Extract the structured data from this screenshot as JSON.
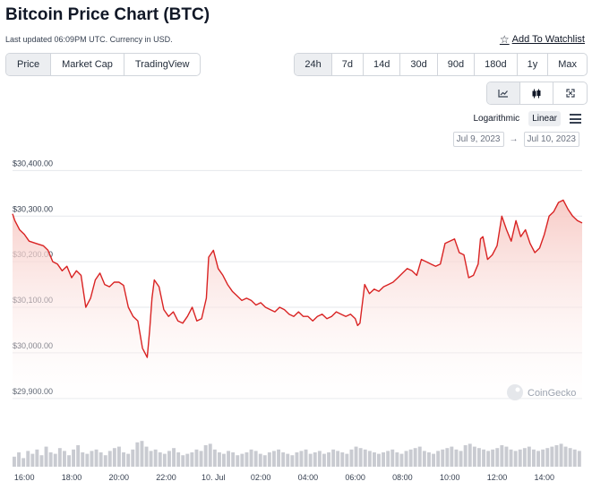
{
  "header": {
    "title": "Bitcoin Price Chart (BTC)",
    "meta": "Last updated 06:09PM UTC. Currency in USD.",
    "watchlist_label": "Add To Watchlist"
  },
  "view_tabs": [
    {
      "label": "Price",
      "active": true
    },
    {
      "label": "Market Cap",
      "active": false
    },
    {
      "label": "TradingView",
      "active": false
    }
  ],
  "range_tabs": [
    {
      "label": "24h",
      "active": true
    },
    {
      "label": "7d",
      "active": false
    },
    {
      "label": "14d",
      "active": false
    },
    {
      "label": "30d",
      "active": false
    },
    {
      "label": "90d",
      "active": false
    },
    {
      "label": "180d",
      "active": false
    },
    {
      "label": "1y",
      "active": false
    },
    {
      "label": "Max",
      "active": false
    }
  ],
  "chart_types": [
    {
      "icon": "line-chart-icon",
      "active": true
    },
    {
      "icon": "candlestick-icon",
      "active": false
    },
    {
      "icon": "fullscreen-icon",
      "active": false
    }
  ],
  "scale": {
    "log_label": "Logarithmic",
    "linear_label": "Linear",
    "active": "linear"
  },
  "date_range": {
    "from": "Jul 9, 2023",
    "separator": "→",
    "to": "Jul 10, 2023"
  },
  "watermark": "CoinGecko",
  "colors": {
    "line": "#d92323",
    "fill_top": "#f7c9c4",
    "volume": "#c9cbd1"
  },
  "chart_data": {
    "type": "line",
    "title": "",
    "y_ticks": [
      30400,
      30300,
      30200,
      30100,
      30000,
      29900
    ],
    "y_tick_labels": [
      "$30,400.00",
      "$30,300.00",
      "$30,200.00",
      "$30,100.00",
      "$30,000.00",
      "$29,900.00"
    ],
    "ylim": [
      29880,
      30440
    ],
    "xlim": [
      15.5,
      39.6
    ],
    "x_ticks": [
      16,
      18,
      20,
      22,
      24,
      26,
      28,
      30,
      32,
      34,
      36,
      38
    ],
    "x_tick_labels": [
      "16:00",
      "18:00",
      "20:00",
      "22:00",
      "10. Jul",
      "02:00",
      "04:00",
      "06:00",
      "08:00",
      "10:00",
      "12:00",
      "14:00"
    ],
    "x_unit": "hours since Jul 9 00:00",
    "series": [
      {
        "name": "Price",
        "x": [
          15.5,
          15.6,
          15.8,
          16.0,
          16.2,
          16.5,
          16.8,
          17.0,
          17.2,
          17.4,
          17.6,
          17.8,
          18.0,
          18.2,
          18.4,
          18.6,
          18.8,
          19.0,
          19.2,
          19.4,
          19.6,
          19.8,
          20.0,
          20.2,
          20.4,
          20.6,
          20.8,
          21.0,
          21.2,
          21.3,
          21.4,
          21.5,
          21.7,
          21.9,
          22.1,
          22.3,
          22.5,
          22.7,
          22.9,
          23.1,
          23.3,
          23.5,
          23.7,
          23.8,
          24.0,
          24.2,
          24.4,
          24.6,
          24.8,
          25.0,
          25.2,
          25.4,
          25.6,
          25.8,
          26.0,
          26.2,
          26.4,
          26.6,
          26.8,
          27.0,
          27.2,
          27.4,
          27.6,
          27.8,
          28.0,
          28.2,
          28.4,
          28.6,
          28.8,
          29.0,
          29.2,
          29.4,
          29.6,
          29.8,
          30.0,
          30.1,
          30.2,
          30.4,
          30.6,
          30.8,
          31.0,
          31.2,
          31.4,
          31.6,
          31.8,
          32.0,
          32.2,
          32.4,
          32.6,
          32.8,
          33.0,
          33.2,
          33.4,
          33.6,
          33.8,
          34.0,
          34.2,
          34.4,
          34.6,
          34.8,
          35.0,
          35.2,
          35.3,
          35.4,
          35.6,
          35.8,
          36.0,
          36.2,
          36.4,
          36.6,
          36.8,
          37.0,
          37.2,
          37.4,
          37.6,
          37.8,
          38.0,
          38.2,
          38.4,
          38.6,
          38.8,
          39.0,
          39.2,
          39.4,
          39.6
        ],
        "values": [
          30305,
          30290,
          30270,
          30260,
          30245,
          30240,
          30235,
          30225,
          30200,
          30195,
          30180,
          30190,
          30165,
          30180,
          30170,
          30100,
          30120,
          30160,
          30175,
          30150,
          30145,
          30155,
          30155,
          30148,
          30100,
          30080,
          30070,
          30010,
          29990,
          30050,
          30120,
          30160,
          30145,
          30095,
          30080,
          30090,
          30070,
          30065,
          30080,
          30100,
          30070,
          30075,
          30120,
          30210,
          30225,
          30185,
          30170,
          30150,
          30135,
          30125,
          30115,
          30120,
          30115,
          30105,
          30110,
          30100,
          30095,
          30090,
          30100,
          30095,
          30085,
          30080,
          30090,
          30080,
          30080,
          30070,
          30080,
          30085,
          30075,
          30080,
          30090,
          30085,
          30080,
          30085,
          30075,
          30060,
          30065,
          30150,
          30130,
          30140,
          30135,
          30145,
          30150,
          30155,
          30165,
          30175,
          30185,
          30180,
          30170,
          30205,
          30200,
          30195,
          30190,
          30195,
          30240,
          30245,
          30250,
          30220,
          30215,
          30165,
          30170,
          30195,
          30250,
          30255,
          30205,
          30215,
          30235,
          30300,
          30270,
          30245,
          30290,
          30255,
          30270,
          30240,
          30220,
          30230,
          30260,
          30300,
          30310,
          30330,
          30335,
          30315,
          30300,
          30290,
          30285
        ]
      }
    ],
    "volume": {
      "name": "Volume",
      "relative": [
        0.35,
        0.5,
        0.3,
        0.55,
        0.45,
        0.6,
        0.4,
        0.7,
        0.5,
        0.45,
        0.65,
        0.55,
        0.4,
        0.6,
        0.75,
        0.5,
        0.45,
        0.55,
        0.6,
        0.5,
        0.4,
        0.55,
        0.65,
        0.7,
        0.5,
        0.45,
        0.6,
        0.85,
        0.9,
        0.7,
        0.55,
        0.6,
        0.5,
        0.45,
        0.55,
        0.65,
        0.5,
        0.4,
        0.45,
        0.5,
        0.6,
        0.55,
        0.75,
        0.8,
        0.6,
        0.5,
        0.45,
        0.55,
        0.5,
        0.4,
        0.45,
        0.5,
        0.6,
        0.55,
        0.45,
        0.4,
        0.5,
        0.55,
        0.6,
        0.5,
        0.45,
        0.4,
        0.5,
        0.55,
        0.6,
        0.45,
        0.5,
        0.55,
        0.45,
        0.5,
        0.6,
        0.55,
        0.5,
        0.45,
        0.6,
        0.7,
        0.65,
        0.6,
        0.55,
        0.5,
        0.45,
        0.5,
        0.55,
        0.6,
        0.5,
        0.45,
        0.55,
        0.6,
        0.65,
        0.7,
        0.55,
        0.5,
        0.45,
        0.55,
        0.6,
        0.65,
        0.7,
        0.6,
        0.55,
        0.75,
        0.8,
        0.7,
        0.65,
        0.6,
        0.55,
        0.6,
        0.65,
        0.75,
        0.7,
        0.6,
        0.55,
        0.6,
        0.65,
        0.7,
        0.6,
        0.55,
        0.6,
        0.65,
        0.7,
        0.75,
        0.8,
        0.7,
        0.65,
        0.6,
        0.55
      ]
    }
  }
}
